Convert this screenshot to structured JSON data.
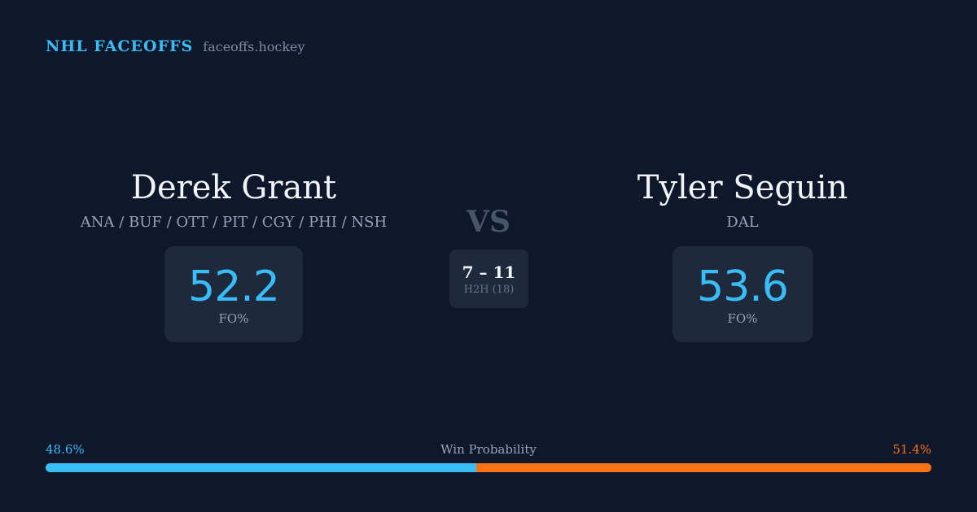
{
  "brand": {
    "name": "NHL FACEOFFS",
    "domain": "faceoffs.hockey"
  },
  "player_left": {
    "name": "Derek Grant",
    "teams": "ANA / BUF / OTT / PIT / CGY / PHI / NSH",
    "fo_pct": "52.2",
    "fo_label": "FO%"
  },
  "player_right": {
    "name": "Tyler Seguin",
    "teams": "DAL",
    "fo_pct": "53.6",
    "fo_label": "FO%"
  },
  "versus": "VS",
  "head_to_head": {
    "score": "7 – 11",
    "label": "H2H (18)"
  },
  "win_probability": {
    "title": "Win Probability",
    "left_label": "48.6%",
    "right_label": "51.4%",
    "left_fraction": 0.486,
    "right_fraction": 0.514
  },
  "colors": {
    "background": "#0f172a",
    "card": "#1e293b",
    "left_accent": "#38bdf8",
    "right_accent": "#f97316"
  }
}
